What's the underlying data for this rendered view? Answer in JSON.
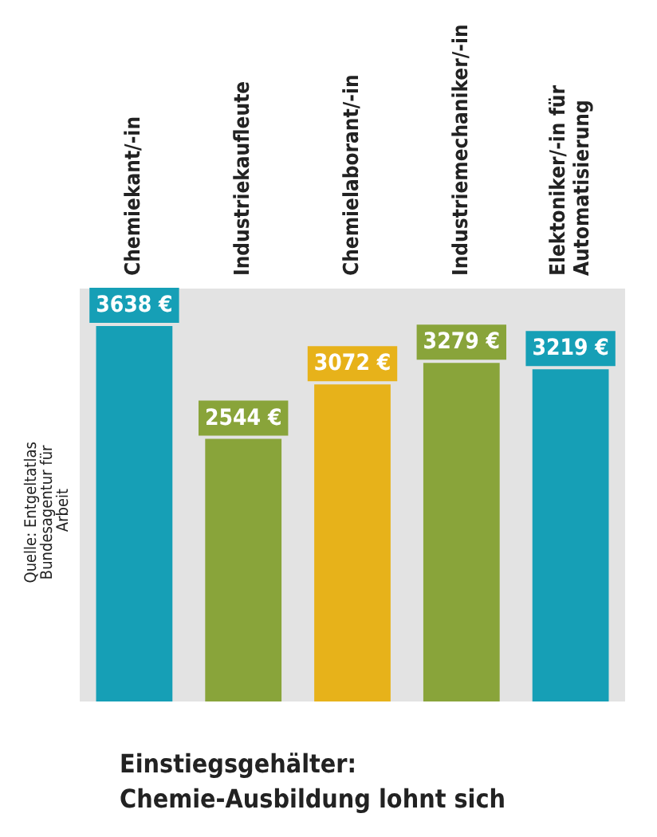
{
  "chart_data": {
    "type": "bar",
    "title": "Einstiegsgehälter: Chemie-Ausbildung lohnt sich",
    "annotations": [
      "Quelle: Entgeltatlas Bundesagentur für Arbeit"
    ],
    "categories": [
      "Chemiekant/-in",
      "Industriekaufleute",
      "Chemielaborant/-in",
      "Industriemechaniker/-in",
      "Elektoniker/-in für Automatisierung"
    ],
    "values": [
      3638,
      2544,
      3072,
      3279,
      3219
    ],
    "colors": [
      "#169fb6",
      "#89a43a",
      "#e7b21a",
      "#89a43a",
      "#169fb6"
    ],
    "value_labels": [
      "3638 €",
      "2544 €",
      "3072 €",
      "3279 €",
      "3219 €"
    ]
  }
}
